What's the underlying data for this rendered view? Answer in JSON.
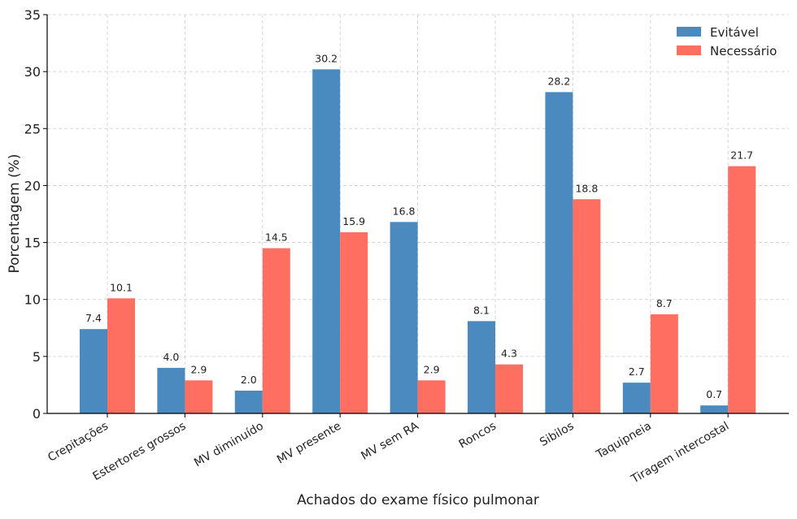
{
  "chart_data": {
    "type": "bar",
    "title": "",
    "xlabel": "Achados do exame físico pulmonar",
    "ylabel": "Porcentagem (%)",
    "ylim": [
      0,
      35
    ],
    "yticks": [
      0,
      5,
      10,
      15,
      20,
      25,
      30,
      35
    ],
    "grid": true,
    "legend_position": "top-right",
    "categories": [
      "Crepitações",
      "Estertores grossos",
      "MV diminuído",
      "MV presente",
      "MV sem RA",
      "Roncos",
      "Sibilos",
      "Taquipneia",
      "Tiragem intercostal"
    ],
    "series": [
      {
        "name": "Evitável",
        "color": "#4a8abe",
        "values": [
          7.4,
          4.0,
          2.0,
          30.2,
          16.8,
          8.1,
          28.2,
          2.7,
          0.7
        ]
      },
      {
        "name": "Necessário",
        "color": "#ff6f61",
        "values": [
          10.1,
          2.9,
          14.5,
          15.9,
          2.9,
          4.3,
          18.8,
          8.7,
          21.7
        ]
      }
    ]
  }
}
